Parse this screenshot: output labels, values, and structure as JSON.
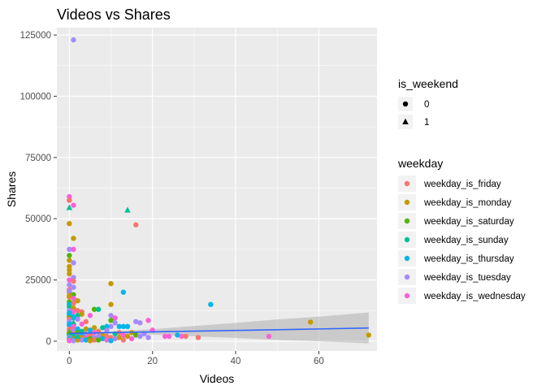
{
  "chart_data": {
    "type": "scatter",
    "title": "Videos vs Shares",
    "xlabel": "Videos",
    "ylabel": "Shares",
    "xlim": [
      -3,
      74
    ],
    "ylim": [
      -4000,
      128000
    ],
    "xticks": [
      0,
      20,
      40,
      60
    ],
    "yticks": [
      0,
      25000,
      50000,
      75000,
      100000,
      125000
    ],
    "ytick_labels": [
      "0",
      "25000",
      "50000",
      "75000",
      "100000",
      "125000"
    ],
    "grid": true,
    "legend_position": "right",
    "shape_legend": {
      "title": "is_weekend",
      "entries": [
        {
          "label": "0",
          "shape": "circle"
        },
        {
          "label": "1",
          "shape": "triangle"
        }
      ]
    },
    "color_legend": {
      "title": "weekday",
      "entries": [
        {
          "label": "weekday_is_friday",
          "color": "#F8766D"
        },
        {
          "label": "weekday_is_monday",
          "color": "#C49A00"
        },
        {
          "label": "weekday_is_saturday",
          "color": "#53B400"
        },
        {
          "label": "weekday_is_sunday",
          "color": "#00C094"
        },
        {
          "label": "weekday_is_thursday",
          "color": "#00B6EB"
        },
        {
          "label": "weekday_is_tuesday",
          "color": "#A58AFF"
        },
        {
          "label": "weekday_is_wednesday",
          "color": "#FB61D7"
        }
      ]
    },
    "points": [
      {
        "x": 1,
        "y": 123000,
        "day": "weekday_is_tuesday",
        "weekend": 0
      },
      {
        "x": 0,
        "y": 59000,
        "day": "weekday_is_wednesday",
        "weekend": 0
      },
      {
        "x": 0,
        "y": 57500,
        "day": "weekday_is_friday",
        "weekend": 0
      },
      {
        "x": 1,
        "y": 55500,
        "day": "weekday_is_wednesday",
        "weekend": 0
      },
      {
        "x": 0,
        "y": 54500,
        "day": "weekday_is_sunday",
        "weekend": 1
      },
      {
        "x": 14,
        "y": 53500,
        "day": "weekday_is_sunday",
        "weekend": 1
      },
      {
        "x": 16,
        "y": 47500,
        "day": "weekday_is_friday",
        "weekend": 0
      },
      {
        "x": 0,
        "y": 48000,
        "day": "weekday_is_monday",
        "weekend": 0
      },
      {
        "x": 1,
        "y": 42000,
        "day": "weekday_is_monday",
        "weekend": 0
      },
      {
        "x": 0,
        "y": 37500,
        "day": "weekday_is_tuesday",
        "weekend": 0
      },
      {
        "x": 1,
        "y": 37500,
        "day": "weekday_is_wednesday",
        "weekend": 0
      },
      {
        "x": 0,
        "y": 35000,
        "day": "weekday_is_saturday",
        "weekend": 0
      },
      {
        "x": 0,
        "y": 33000,
        "day": "weekday_is_monday",
        "weekend": 0
      },
      {
        "x": 1,
        "y": 32000,
        "day": "weekday_is_tuesday",
        "weekend": 0
      },
      {
        "x": 0,
        "y": 30500,
        "day": "weekday_is_monday",
        "weekend": 0
      },
      {
        "x": 0,
        "y": 29000,
        "day": "weekday_is_monday",
        "weekend": 0
      },
      {
        "x": 0,
        "y": 27500,
        "day": "weekday_is_monday",
        "weekend": 0
      },
      {
        "x": 1,
        "y": 26000,
        "day": "weekday_is_tuesday",
        "weekend": 0
      },
      {
        "x": 0,
        "y": 25000,
        "day": "weekday_is_wednesday",
        "weekend": 0
      },
      {
        "x": 10,
        "y": 23500,
        "day": "weekday_is_monday",
        "weekend": 0
      },
      {
        "x": 0,
        "y": 23000,
        "day": "weekday_is_tuesday",
        "weekend": 0
      },
      {
        "x": 1,
        "y": 22000,
        "day": "weekday_is_tuesday",
        "weekend": 0
      },
      {
        "x": 13,
        "y": 20000,
        "day": "weekday_is_thursday",
        "weekend": 0
      },
      {
        "x": 0,
        "y": 21000,
        "day": "weekday_is_friday",
        "weekend": 0
      },
      {
        "x": 0,
        "y": 20000,
        "day": "weekday_is_monday",
        "weekend": 0
      },
      {
        "x": 1,
        "y": 19000,
        "day": "weekday_is_saturday",
        "weekend": 0
      },
      {
        "x": 0,
        "y": 18000,
        "day": "weekday_is_friday",
        "weekend": 0
      },
      {
        "x": 1,
        "y": 17500,
        "day": "weekday_is_wednesday",
        "weekend": 0
      },
      {
        "x": 2,
        "y": 16500,
        "day": "weekday_is_monday",
        "weekend": 0
      },
      {
        "x": 0,
        "y": 16000,
        "day": "weekday_is_saturday",
        "weekend": 0
      },
      {
        "x": 1,
        "y": 15500,
        "day": "weekday_is_friday",
        "weekend": 0
      },
      {
        "x": 0,
        "y": 15000,
        "day": "weekday_is_thursday",
        "weekend": 0
      },
      {
        "x": 34,
        "y": 15000,
        "day": "weekday_is_thursday",
        "weekend": 0
      },
      {
        "x": 10,
        "y": 15000,
        "day": "weekday_is_monday",
        "weekend": 0
      },
      {
        "x": 0,
        "y": 14000,
        "day": "weekday_is_sunday",
        "weekend": 0
      },
      {
        "x": 1,
        "y": 13500,
        "day": "weekday_is_monday",
        "weekend": 0
      },
      {
        "x": 6,
        "y": 13000,
        "day": "weekday_is_saturday",
        "weekend": 0
      },
      {
        "x": 7,
        "y": 13000,
        "day": "weekday_is_sunday",
        "weekend": 0
      },
      {
        "x": 2,
        "y": 12500,
        "day": "weekday_is_friday",
        "weekend": 0
      },
      {
        "x": 0,
        "y": 12500,
        "day": "weekday_is_tuesday",
        "weekend": 0
      },
      {
        "x": 3,
        "y": 12000,
        "day": "weekday_is_friday",
        "weekend": 0
      },
      {
        "x": 1,
        "y": 12000,
        "day": "weekday_is_wednesday",
        "weekend": 0
      },
      {
        "x": 3,
        "y": 11000,
        "day": "weekday_is_monday",
        "weekend": 0
      },
      {
        "x": 0,
        "y": 11000,
        "day": "weekday_is_thursday",
        "weekend": 0
      },
      {
        "x": 2,
        "y": 10500,
        "day": "weekday_is_sunday",
        "weekend": 0
      },
      {
        "x": 10,
        "y": 10500,
        "day": "weekday_is_tuesday",
        "weekend": 0
      },
      {
        "x": 5,
        "y": 10500,
        "day": "weekday_is_wednesday",
        "weekend": 0
      },
      {
        "x": 0,
        "y": 10000,
        "day": "weekday_is_saturday",
        "weekend": 0
      },
      {
        "x": 1,
        "y": 9500,
        "day": "weekday_is_thursday",
        "weekend": 0
      },
      {
        "x": 11,
        "y": 9500,
        "day": "weekday_is_wednesday",
        "weekend": 0
      },
      {
        "x": 0,
        "y": 9000,
        "day": "weekday_is_friday",
        "weekend": 0
      },
      {
        "x": 2,
        "y": 9000,
        "day": "weekday_is_tuesday",
        "weekend": 0
      },
      {
        "x": 10,
        "y": 8500,
        "day": "weekday_is_saturday",
        "weekend": 0
      },
      {
        "x": 19,
        "y": 8500,
        "day": "weekday_is_wednesday",
        "weekend": 0
      },
      {
        "x": 16,
        "y": 8000,
        "day": "weekday_is_tuesday",
        "weekend": 0
      },
      {
        "x": 17,
        "y": 7500,
        "day": "weekday_is_tuesday",
        "weekend": 0
      },
      {
        "x": 58,
        "y": 7800,
        "day": "weekday_is_monday",
        "weekend": 0
      },
      {
        "x": 11,
        "y": 7500,
        "day": "weekday_is_tuesday",
        "weekend": 0
      },
      {
        "x": 4,
        "y": 8000,
        "day": "weekday_is_friday",
        "weekend": 0
      },
      {
        "x": 3,
        "y": 7000,
        "day": "weekday_is_wednesday",
        "weekend": 0
      },
      {
        "x": 1,
        "y": 7000,
        "day": "weekday_is_monday",
        "weekend": 0
      },
      {
        "x": 0,
        "y": 8000,
        "day": "weekday_is_tuesday",
        "weekend": 0
      },
      {
        "x": 0,
        "y": 6500,
        "day": "weekday_is_thursday",
        "weekend": 0
      },
      {
        "x": 14,
        "y": 6000,
        "day": "weekday_is_thursday",
        "weekend": 0
      },
      {
        "x": 13,
        "y": 6000,
        "day": "weekday_is_thursday",
        "weekend": 0
      },
      {
        "x": 10,
        "y": 6000,
        "day": "weekday_is_tuesday",
        "weekend": 0
      },
      {
        "x": 9,
        "y": 6000,
        "day": "weekday_is_thursday",
        "weekend": 0
      },
      {
        "x": 12,
        "y": 6000,
        "day": "weekday_is_thursday",
        "weekend": 0
      },
      {
        "x": 6,
        "y": 5500,
        "day": "weekday_is_monday",
        "weekend": 0
      },
      {
        "x": 8,
        "y": 5500,
        "day": "weekday_is_sunday",
        "weekend": 0
      },
      {
        "x": 1,
        "y": 5500,
        "day": "weekday_is_saturday",
        "weekend": 0
      },
      {
        "x": 2,
        "y": 5000,
        "day": "weekday_is_thursday",
        "weekend": 0
      },
      {
        "x": 4,
        "y": 5000,
        "day": "weekday_is_monday",
        "weekend": 0
      },
      {
        "x": 0,
        "y": 5000,
        "day": "weekday_is_friday",
        "weekend": 0
      },
      {
        "x": 20,
        "y": 4500,
        "day": "weekday_is_wednesday",
        "weekend": 0
      },
      {
        "x": 9,
        "y": 4500,
        "day": "weekday_is_tuesday",
        "weekend": 0
      },
      {
        "x": 5,
        "y": 4500,
        "day": "weekday_is_thursday",
        "weekend": 0
      },
      {
        "x": 1,
        "y": 4000,
        "day": "weekday_is_tuesday",
        "weekend": 0
      },
      {
        "x": 3,
        "y": 4000,
        "day": "weekday_is_sunday",
        "weekend": 0
      },
      {
        "x": 7,
        "y": 4000,
        "day": "weekday_is_friday",
        "weekend": 0
      },
      {
        "x": 0,
        "y": 4000,
        "day": "weekday_is_wednesday",
        "weekend": 0
      },
      {
        "x": 12,
        "y": 3500,
        "day": "weekday_is_friday",
        "weekend": 0
      },
      {
        "x": 15,
        "y": 3500,
        "day": "weekday_is_monday",
        "weekend": 0
      },
      {
        "x": 2,
        "y": 3500,
        "day": "weekday_is_saturday",
        "weekend": 0
      },
      {
        "x": 6,
        "y": 3500,
        "day": "weekday_is_wednesday",
        "weekend": 0
      },
      {
        "x": 18,
        "y": 3000,
        "day": "weekday_is_tuesday",
        "weekend": 0
      },
      {
        "x": 1,
        "y": 3000,
        "day": "weekday_is_friday",
        "weekend": 0
      },
      {
        "x": 4,
        "y": 3000,
        "day": "weekday_is_tuesday",
        "weekend": 0
      },
      {
        "x": 11,
        "y": 3000,
        "day": "weekday_is_sunday",
        "weekend": 0
      },
      {
        "x": 0,
        "y": 3000,
        "day": "weekday_is_monday",
        "weekend": 0
      },
      {
        "x": 8,
        "y": 2500,
        "day": "weekday_is_monday",
        "weekend": 0
      },
      {
        "x": 3,
        "y": 2500,
        "day": "weekday_is_thursday",
        "weekend": 0
      },
      {
        "x": 13,
        "y": 2500,
        "day": "weekday_is_wednesday",
        "weekend": 0
      },
      {
        "x": 16,
        "y": 2500,
        "day": "weekday_is_saturday",
        "weekend": 0
      },
      {
        "x": 26,
        "y": 2500,
        "day": "weekday_is_thursday",
        "weekend": 0
      },
      {
        "x": 5,
        "y": 2500,
        "day": "weekday_is_friday",
        "weekend": 0
      },
      {
        "x": 0,
        "y": 2500,
        "day": "weekday_is_sunday",
        "weekend": 0
      },
      {
        "x": 2,
        "y": 2000,
        "day": "weekday_is_wednesday",
        "weekend": 0
      },
      {
        "x": 9,
        "y": 2000,
        "day": "weekday_is_friday",
        "weekend": 0
      },
      {
        "x": 14,
        "y": 2000,
        "day": "weekday_is_monday",
        "weekend": 0
      },
      {
        "x": 23,
        "y": 2000,
        "day": "weekday_is_wednesday",
        "weekend": 0
      },
      {
        "x": 24,
        "y": 2000,
        "day": "weekday_is_wednesday",
        "weekend": 0
      },
      {
        "x": 27,
        "y": 2000,
        "day": "weekday_is_wednesday",
        "weekend": 0
      },
      {
        "x": 28,
        "y": 2000,
        "day": "weekday_is_friday",
        "weekend": 0
      },
      {
        "x": 48,
        "y": 2000,
        "day": "weekday_is_wednesday",
        "weekend": 0
      },
      {
        "x": 17,
        "y": 2000,
        "day": "weekday_is_tuesday",
        "weekend": 0
      },
      {
        "x": 7,
        "y": 2000,
        "day": "weekday_is_tuesday",
        "weekend": 0
      },
      {
        "x": 1,
        "y": 2000,
        "day": "weekday_is_sunday",
        "weekend": 0
      },
      {
        "x": 4,
        "y": 1500,
        "day": "weekday_is_wednesday",
        "weekend": 0
      },
      {
        "x": 10,
        "y": 1500,
        "day": "weekday_is_friday",
        "weekend": 0
      },
      {
        "x": 6,
        "y": 1500,
        "day": "weekday_is_tuesday",
        "weekend": 0
      },
      {
        "x": 31,
        "y": 1500,
        "day": "weekday_is_friday",
        "weekend": 0
      },
      {
        "x": 19,
        "y": 1500,
        "day": "weekday_is_tuesday",
        "weekend": 0
      },
      {
        "x": 12,
        "y": 1500,
        "day": "weekday_is_monday",
        "weekend": 0
      },
      {
        "x": 3,
        "y": 1500,
        "day": "weekday_is_monday",
        "weekend": 0
      },
      {
        "x": 0,
        "y": 1500,
        "day": "weekday_is_tuesday",
        "weekend": 0
      },
      {
        "x": 72,
        "y": 2500,
        "day": "weekday_is_monday",
        "weekend": 0
      },
      {
        "x": 2,
        "y": 1000,
        "day": "weekday_is_friday",
        "weekend": 0
      },
      {
        "x": 5,
        "y": 1000,
        "day": "weekday_is_saturday",
        "weekend": 0
      },
      {
        "x": 8,
        "y": 1000,
        "day": "weekday_is_thursday",
        "weekend": 0
      },
      {
        "x": 15,
        "y": 1000,
        "day": "weekday_is_wednesday",
        "weekend": 0
      },
      {
        "x": 1,
        "y": 1000,
        "day": "weekday_is_monday",
        "weekend": 0
      },
      {
        "x": 0,
        "y": 1000,
        "day": "weekday_is_thursday",
        "weekend": 0
      },
      {
        "x": 11,
        "y": 1000,
        "day": "weekday_is_tuesday",
        "weekend": 0
      },
      {
        "x": 3,
        "y": 500,
        "day": "weekday_is_tuesday",
        "weekend": 0
      },
      {
        "x": 6,
        "y": 500,
        "day": "weekday_is_friday",
        "weekend": 0
      },
      {
        "x": 9,
        "y": 500,
        "day": "weekday_is_wednesday",
        "weekend": 0
      },
      {
        "x": 1,
        "y": 500,
        "day": "weekday_is_thursday",
        "weekend": 0
      },
      {
        "x": 0,
        "y": 500,
        "day": "weekday_is_friday",
        "weekend": 0
      },
      {
        "x": 2,
        "y": 500,
        "day": "weekday_is_monday",
        "weekend": 0
      },
      {
        "x": 4,
        "y": 500,
        "day": "weekday_is_thursday",
        "weekend": 0
      },
      {
        "x": 7,
        "y": 500,
        "day": "weekday_is_saturday",
        "weekend": 0
      },
      {
        "x": 13,
        "y": 500,
        "day": "weekday_is_friday",
        "weekend": 0
      },
      {
        "x": 0,
        "y": 200,
        "day": "weekday_is_wednesday",
        "weekend": 0
      },
      {
        "x": 1,
        "y": 200,
        "day": "weekday_is_tuesday",
        "weekend": 0
      },
      {
        "x": 5,
        "y": 200,
        "day": "weekday_is_monday",
        "weekend": 0
      },
      {
        "x": 10,
        "y": 200,
        "day": "weekday_is_thursday",
        "weekend": 0
      },
      {
        "x": 1,
        "y": 7500,
        "day": "weekday_is_sunday",
        "weekend": 1
      },
      {
        "x": 0,
        "y": 4000,
        "day": "weekday_is_saturday",
        "weekend": 1
      },
      {
        "x": 2,
        "y": 2000,
        "day": "weekday_is_sunday",
        "weekend": 1
      },
      {
        "x": 0,
        "y": 11500,
        "day": "weekday_is_thursday",
        "weekend": 0
      },
      {
        "x": 1,
        "y": 10000,
        "day": "weekday_is_thursday",
        "weekend": 0
      },
      {
        "x": 0,
        "y": 7000,
        "day": "weekday_is_thursday",
        "weekend": 0
      },
      {
        "x": 1,
        "y": 6000,
        "day": "weekday_is_wednesday",
        "weekend": 0
      },
      {
        "x": 0,
        "y": 20500,
        "day": "weekday_is_tuesday",
        "weekend": 0
      },
      {
        "x": 0,
        "y": 18500,
        "day": "weekday_is_monday",
        "weekend": 0
      },
      {
        "x": 1,
        "y": 24500,
        "day": "weekday_is_friday",
        "weekend": 0
      }
    ],
    "smooth": {
      "x": [
        0,
        10,
        20,
        30,
        40,
        50,
        60,
        72
      ],
      "y": [
        3200,
        3500,
        3800,
        4100,
        4400,
        4700,
        5000,
        5400
      ],
      "lo": [
        2900,
        3000,
        2700,
        2000,
        1300,
        500,
        0,
        -900
      ],
      "hi": [
        3500,
        4000,
        4900,
        6200,
        7500,
        8900,
        10000,
        11700
      ],
      "line_color": "#3366FF",
      "band_color": "#999999"
    }
  }
}
